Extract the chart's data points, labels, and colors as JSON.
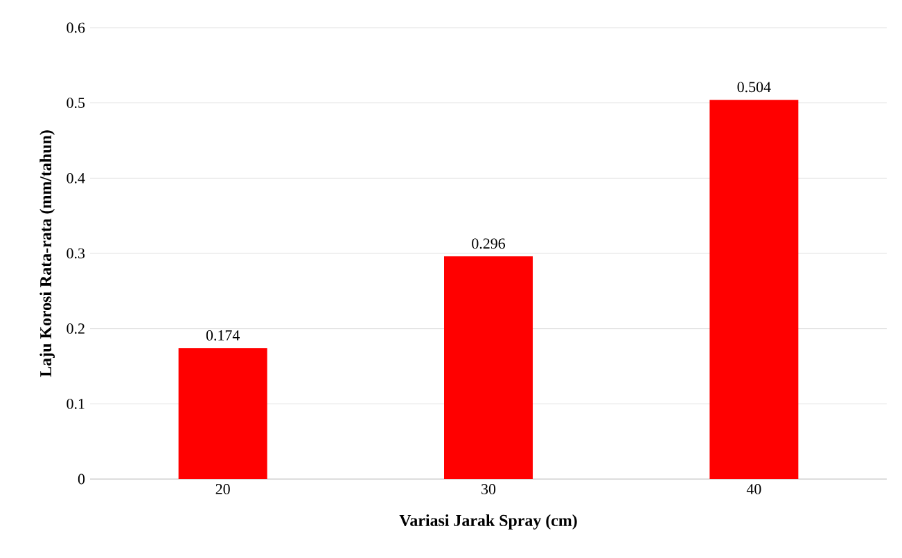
{
  "chart_data": {
    "type": "bar",
    "xlabel": "Variasi Jarak Spray (cm)",
    "ylabel": "Laju Korosi Rata-rata (mm/tahun)",
    "categories": [
      "20",
      "30",
      "40"
    ],
    "values": [
      0.174,
      0.296,
      0.504
    ],
    "color": "#ff0000",
    "ylim": [
      0,
      0.6
    ],
    "yticks": [
      0,
      0.1,
      0.2,
      0.3,
      0.4,
      0.5,
      0.6
    ],
    "grid": "y",
    "data_labels": true
  }
}
